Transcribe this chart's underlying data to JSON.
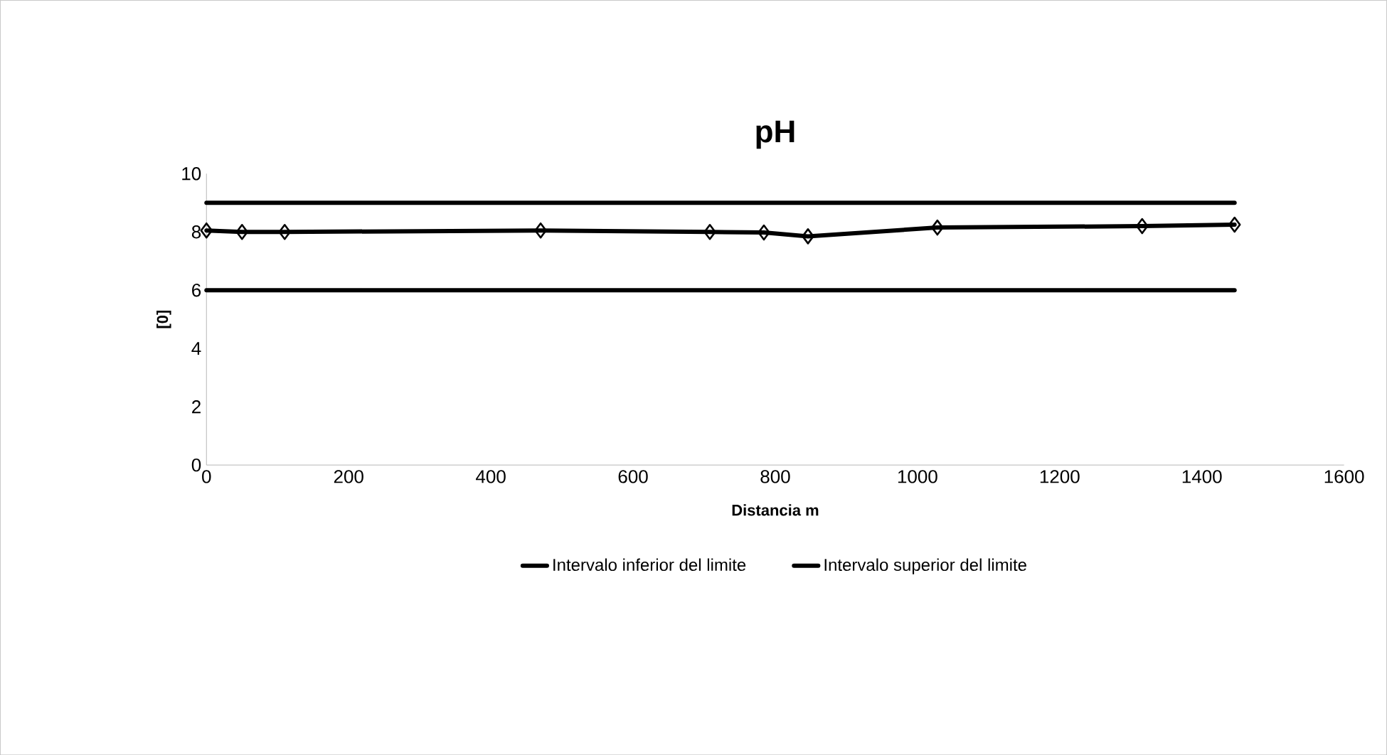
{
  "chart_data": {
    "type": "line",
    "title": "pH",
    "xlabel": "Distancia m",
    "ylabel": "[0]",
    "xlim": [
      0,
      1600
    ],
    "xticks": [
      0,
      200,
      400,
      600,
      800,
      1000,
      1200,
      1400,
      1600
    ],
    "ylim": [
      0,
      10
    ],
    "yticks": [
      0,
      2,
      4,
      6,
      8,
      10
    ],
    "grid": false,
    "legend": "bottom",
    "series": [
      {
        "color": "#000000",
        "marker": "diamond",
        "x": [
          0,
          50,
          110,
          470,
          708,
          784,
          846,
          1028,
          1316,
          1446
        ],
        "values": [
          8.05,
          8.0,
          8.0,
          8.05,
          8.0,
          7.98,
          7.85,
          8.15,
          8.2,
          8.25
        ]
      },
      {
        "name": "Intervalo inferior del limite",
        "color": "#000000",
        "marker": "none",
        "x": [
          0,
          1446
        ],
        "values": [
          6,
          6
        ]
      },
      {
        "name": "Intervalo superior del limite",
        "color": "#000000",
        "marker": "none",
        "x": [
          0,
          1446
        ],
        "values": [
          9,
          9
        ]
      }
    ]
  }
}
